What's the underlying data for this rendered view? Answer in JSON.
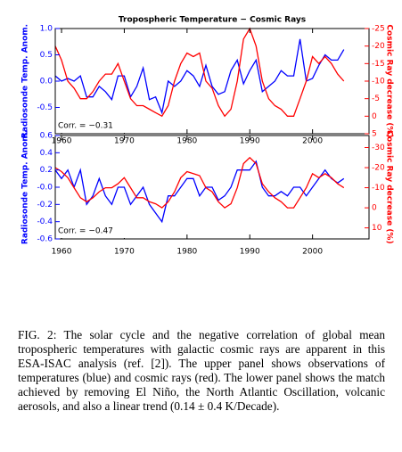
{
  "chart_data": [
    {
      "type": "line",
      "title": "Tropospheric Temperature − Cosmic Rays",
      "ylabel": "Radiosonde Temp. Anom.",
      "y2label": "Cosmic Ray decrease (%)",
      "annotation": "Corr. = −0.31",
      "x": [
        1959,
        1960,
        1961,
        1962,
        1963,
        1964,
        1965,
        1966,
        1967,
        1968,
        1969,
        1970,
        1971,
        1972,
        1973,
        1974,
        1975,
        1976,
        1977,
        1978,
        1979,
        1980,
        1981,
        1982,
        1983,
        1984,
        1985,
        1986,
        1987,
        1988,
        1989,
        1990,
        1991,
        1992,
        1993,
        1994,
        1995,
        1996,
        1997,
        1998,
        1999,
        2000,
        2001,
        2002,
        2003,
        2004,
        2005
      ],
      "xlim": [
        1959,
        2009
      ],
      "xticks": [
        1960,
        1970,
        1980,
        1990,
        2000
      ],
      "ylim": [
        -1.0,
        1.0
      ],
      "yticks": [
        {
          "value": 1.0,
          "label": "1.0"
        },
        {
          "value": 0.5,
          "label": "0.5"
        },
        {
          "value": 0.0,
          "label": "0.0"
        },
        {
          "value": -0.5,
          "label": "-0.5"
        }
      ],
      "y2lim": [
        -25,
        5
      ],
      "y2_inverted": true,
      "y2ticks": [
        -25,
        -20,
        -15,
        -10,
        -5,
        0,
        5
      ],
      "series": [
        {
          "color": "#0000ff",
          "axis": "y",
          "values": [
            0.1,
            0.0,
            0.05,
            0.0,
            0.1,
            -0.3,
            -0.3,
            -0.1,
            -0.2,
            -0.35,
            0.1,
            0.1,
            -0.3,
            -0.1,
            0.25,
            -0.35,
            -0.3,
            -0.6,
            0.0,
            -0.1,
            0.0,
            0.2,
            0.1,
            -0.1,
            0.3,
            -0.1,
            -0.25,
            -0.2,
            0.2,
            0.4,
            -0.05,
            0.2,
            0.4,
            -0.2,
            -0.1,
            0.0,
            0.2,
            0.1,
            0.1,
            0.8,
            0.0,
            0.05,
            0.3,
            0.5,
            0.4,
            0.4,
            0.6
          ]
        },
        {
          "color": "#ff0000",
          "axis": "y2",
          "values": [
            -20,
            -16,
            -10,
            -8,
            -5,
            -5,
            -7,
            -10,
            -12,
            -12,
            -15,
            -10,
            -5,
            -3,
            -3,
            -2,
            -1,
            0,
            -3,
            -10,
            -15,
            -18,
            -17,
            -18,
            -10,
            -8,
            -3,
            0,
            -2,
            -10,
            -22,
            -25,
            -20,
            -10,
            -5,
            -3,
            -2,
            0,
            0,
            -5,
            -10,
            -17,
            -15,
            -17,
            -15,
            -12,
            -10
          ]
        }
      ]
    },
    {
      "type": "line",
      "ylabel": "Radiosonde Temp. Anom.",
      "y2label": "Cosmic Ray decrease (%)",
      "annotation": "Corr. = −0.47",
      "x": [
        1959,
        1960,
        1961,
        1962,
        1963,
        1964,
        1965,
        1966,
        1967,
        1968,
        1969,
        1970,
        1971,
        1972,
        1973,
        1974,
        1975,
        1976,
        1977,
        1978,
        1979,
        1980,
        1981,
        1982,
        1983,
        1984,
        1985,
        1986,
        1987,
        1988,
        1989,
        1990,
        1991,
        1992,
        1993,
        1994,
        1995,
        1996,
        1997,
        1998,
        1999,
        2000,
        2001,
        2002,
        2003,
        2004,
        2005
      ],
      "xlim": [
        1959,
        2009
      ],
      "xticks": [
        1960,
        1970,
        1980,
        1990,
        2000
      ],
      "ylim": [
        -0.6,
        0.6
      ],
      "yticks": [
        {
          "value": 0.6,
          "label": "0.6"
        },
        {
          "value": 0.4,
          "label": "0.4"
        },
        {
          "value": 0.2,
          "label": "0.2"
        },
        {
          "value": 0.0,
          "label": "-0.0"
        },
        {
          "value": -0.2,
          "label": "-0.2"
        },
        {
          "value": -0.4,
          "label": "-0.4"
        },
        {
          "value": -0.6,
          "label": "-0.6"
        }
      ],
      "y2lim": [
        -36,
        15.5
      ],
      "y2_inverted": true,
      "y2ticks": [
        -30,
        -20,
        -10,
        0,
        10
      ],
      "series": [
        {
          "color": "#0000ff",
          "axis": "y",
          "values": [
            0.2,
            0.1,
            0.2,
            0.0,
            0.2,
            -0.2,
            -0.1,
            0.1,
            -0.1,
            -0.2,
            0.0,
            0.0,
            -0.2,
            -0.1,
            0.0,
            -0.2,
            -0.3,
            -0.4,
            -0.1,
            -0.1,
            0.0,
            0.1,
            0.1,
            -0.1,
            0.0,
            0.0,
            -0.15,
            -0.1,
            0.0,
            0.2,
            0.2,
            0.2,
            0.3,
            0.0,
            -0.1,
            -0.1,
            -0.05,
            -0.1,
            0.0,
            0.0,
            -0.1,
            0.0,
            0.1,
            0.2,
            0.1,
            0.05,
            0.1
          ]
        },
        {
          "color": "#ff0000",
          "axis": "y2",
          "values": [
            -20,
            -18,
            -15,
            -10,
            -5,
            -3,
            -5,
            -8,
            -10,
            -10,
            -12,
            -15,
            -10,
            -5,
            -5,
            -3,
            -2,
            0,
            -3,
            -8,
            -15,
            -18,
            -17,
            -16,
            -10,
            -8,
            -3,
            0,
            -2,
            -10,
            -22,
            -25,
            -22,
            -12,
            -8,
            -5,
            -3,
            0,
            0,
            -5,
            -10,
            -17,
            -15,
            -17,
            -15,
            -12,
            -10
          ]
        }
      ]
    }
  ],
  "caption": "FIG. 2: The solar cycle and the negative correlation of global mean tropospheric temperatures with galactic cosmic rays are apparent in this ESA-ISAC analysis (ref. [2]). The upper panel shows observations of temperatures (blue) and cosmic rays (red). The lower panel shows the match achieved by removing El Niño, the North Atlantic Oscillation, volcanic aerosols, and also a linear trend (0.14 ± 0.4 K/Decade)."
}
